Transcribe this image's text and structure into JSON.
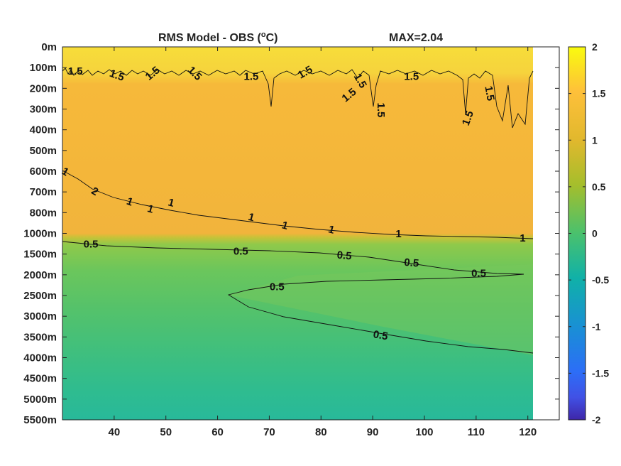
{
  "chart_data": {
    "type": "heatmap",
    "title_left": "RMS Model - OBS (",
    "title_sup": "o",
    "title_right": "C)",
    "title_max": "MAX=2.04",
    "x": [
      30,
      121
    ],
    "xticks": [
      40,
      50,
      60,
      70,
      80,
      90,
      100,
      110,
      120
    ],
    "xtick_labels": [
      "40",
      "50",
      "60",
      "70",
      "80",
      "90",
      "100",
      "110",
      "120"
    ],
    "yticks": [
      "0m",
      "100m",
      "200m",
      "300m",
      "400m",
      "500m",
      "600m",
      "700m",
      "800m",
      "1000m",
      "1500m",
      "2000m",
      "2500m",
      "3000m",
      "3500m",
      "4000m",
      "4500m",
      "5000m",
      "5500m"
    ],
    "colorbar": {
      "range": [
        -2,
        2
      ],
      "ticks": [
        2,
        1.5,
        1,
        0.5,
        0,
        -0.5,
        -1,
        -1.5,
        -2
      ],
      "tick_labels": [
        "2",
        "1.5",
        "1",
        "0.5",
        "0",
        "-0.5",
        "-1",
        "-1.5",
        "-2"
      ],
      "colormap": "parula"
    },
    "contour_labels": [
      {
        "text": "1.5",
        "x": 32.5,
        "y": 1.2,
        "rot": 0
      },
      {
        "text": "1.5",
        "x": 40.5,
        "y": 1.4,
        "rot": 20
      },
      {
        "text": "1.5",
        "x": 47.5,
        "y": 1.3,
        "rot": -40
      },
      {
        "text": "1.5",
        "x": 55.5,
        "y": 1.3,
        "rot": 45
      },
      {
        "text": "1.5",
        "x": 66.5,
        "y": 1.45,
        "rot": 0
      },
      {
        "text": "1.5",
        "x": 77,
        "y": 1.25,
        "rot": -30
      },
      {
        "text": "1.5",
        "x": 85.5,
        "y": 2.35,
        "rot": -40
      },
      {
        "text": "1.5",
        "x": 87.5,
        "y": 1.65,
        "rot": 60
      },
      {
        "text": "1.5",
        "x": 91.5,
        "y": 3.05,
        "rot": 90
      },
      {
        "text": "1.5",
        "x": 97.5,
        "y": 1.45,
        "rot": 0
      },
      {
        "text": "1.5",
        "x": 112.5,
        "y": 2.25,
        "rot": 80
      },
      {
        "text": "1.5",
        "x": 108.5,
        "y": 3.45,
        "rot": -70
      },
      {
        "text": "1",
        "x": 30.5,
        "y": 6.05,
        "rot": 30
      },
      {
        "text": "2",
        "x": 36.2,
        "y": 7.0,
        "rot": 30
      },
      {
        "text": "1",
        "x": 43,
        "y": 7.5,
        "rot": 20
      },
      {
        "text": "1",
        "x": 47,
        "y": 7.85,
        "rot": 15
      },
      {
        "text": "1",
        "x": 51,
        "y": 7.55,
        "rot": 15
      },
      {
        "text": "1",
        "x": 66.5,
        "y": 8.25,
        "rot": 15
      },
      {
        "text": "1",
        "x": 73,
        "y": 8.65,
        "rot": 15
      },
      {
        "text": "1",
        "x": 82,
        "y": 8.85,
        "rot": 15
      },
      {
        "text": "1",
        "x": 95,
        "y": 9.05,
        "rot": 0
      },
      {
        "text": "1",
        "x": 119,
        "y": 9.25,
        "rot": 0
      },
      {
        "text": "0.5",
        "x": 35.5,
        "y": 9.55,
        "rot": 0
      },
      {
        "text": "0.5",
        "x": 64.5,
        "y": 9.9,
        "rot": 0
      },
      {
        "text": "0.5",
        "x": 84.5,
        "y": 10.1,
        "rot": 5
      },
      {
        "text": "0.5",
        "x": 97.5,
        "y": 10.45,
        "rot": 5
      },
      {
        "text": "0.5",
        "x": 110.5,
        "y": 10.95,
        "rot": 0
      },
      {
        "text": "0.5",
        "x": 71.5,
        "y": 11.6,
        "rot": 0
      },
      {
        "text": "0.5",
        "x": 91.5,
        "y": 13.95,
        "rot": 10
      }
    ]
  }
}
